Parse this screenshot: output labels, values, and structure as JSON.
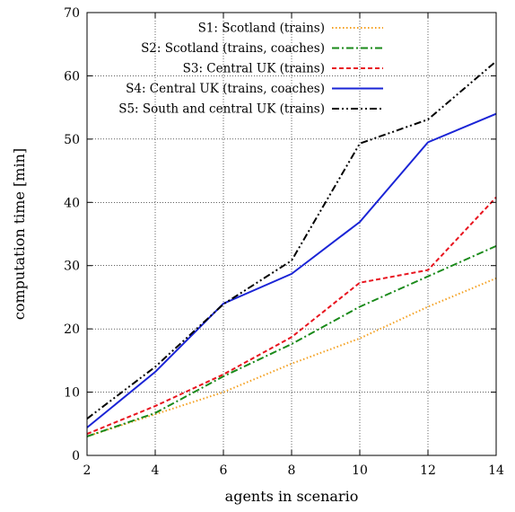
{
  "chart_data": {
    "type": "line",
    "xlabel": "agents in scenario",
    "ylabel": "computation time [min]",
    "x": [
      2,
      4,
      6,
      8,
      10,
      12,
      14
    ],
    "xlim": [
      2,
      14
    ],
    "ylim": [
      0,
      70
    ],
    "xticks": [
      "2",
      "4",
      "6",
      "8",
      "10",
      "12",
      "14"
    ],
    "yticks": [
      "0",
      "10",
      "20",
      "30",
      "40",
      "50",
      "60",
      "70"
    ],
    "grid": true,
    "legend_position": "top-left",
    "series": [
      {
        "name": "S1: Scotland (trains)",
        "values": [
          3.0,
          6.5,
          10.0,
          14.5,
          18.5,
          23.5,
          28.0
        ],
        "color": "#f4a020",
        "dash": "dotted"
      },
      {
        "name": "S2: Scotland (trains, coaches)",
        "values": [
          3.0,
          6.7,
          12.5,
          17.6,
          23.5,
          28.3,
          33.1
        ],
        "color": "#1a8a1a",
        "dash": "dashdot"
      },
      {
        "name": "S3: Central UK (trains)",
        "values": [
          3.4,
          7.8,
          12.8,
          18.7,
          27.3,
          29.3,
          40.8
        ],
        "color": "#e8141e",
        "dash": "dashed"
      },
      {
        "name": "S4: Central UK (trains, coaches)",
        "values": [
          4.4,
          13.2,
          24.0,
          28.7,
          36.9,
          49.5,
          54.0
        ],
        "color": "#1a24d6",
        "dash": "solid"
      },
      {
        "name": "S5: South and central UK (trains)",
        "values": [
          5.8,
          14.0,
          23.9,
          30.8,
          49.3,
          53.1,
          62.3
        ],
        "color": "#000000",
        "dash": "dashdotdot"
      }
    ]
  }
}
